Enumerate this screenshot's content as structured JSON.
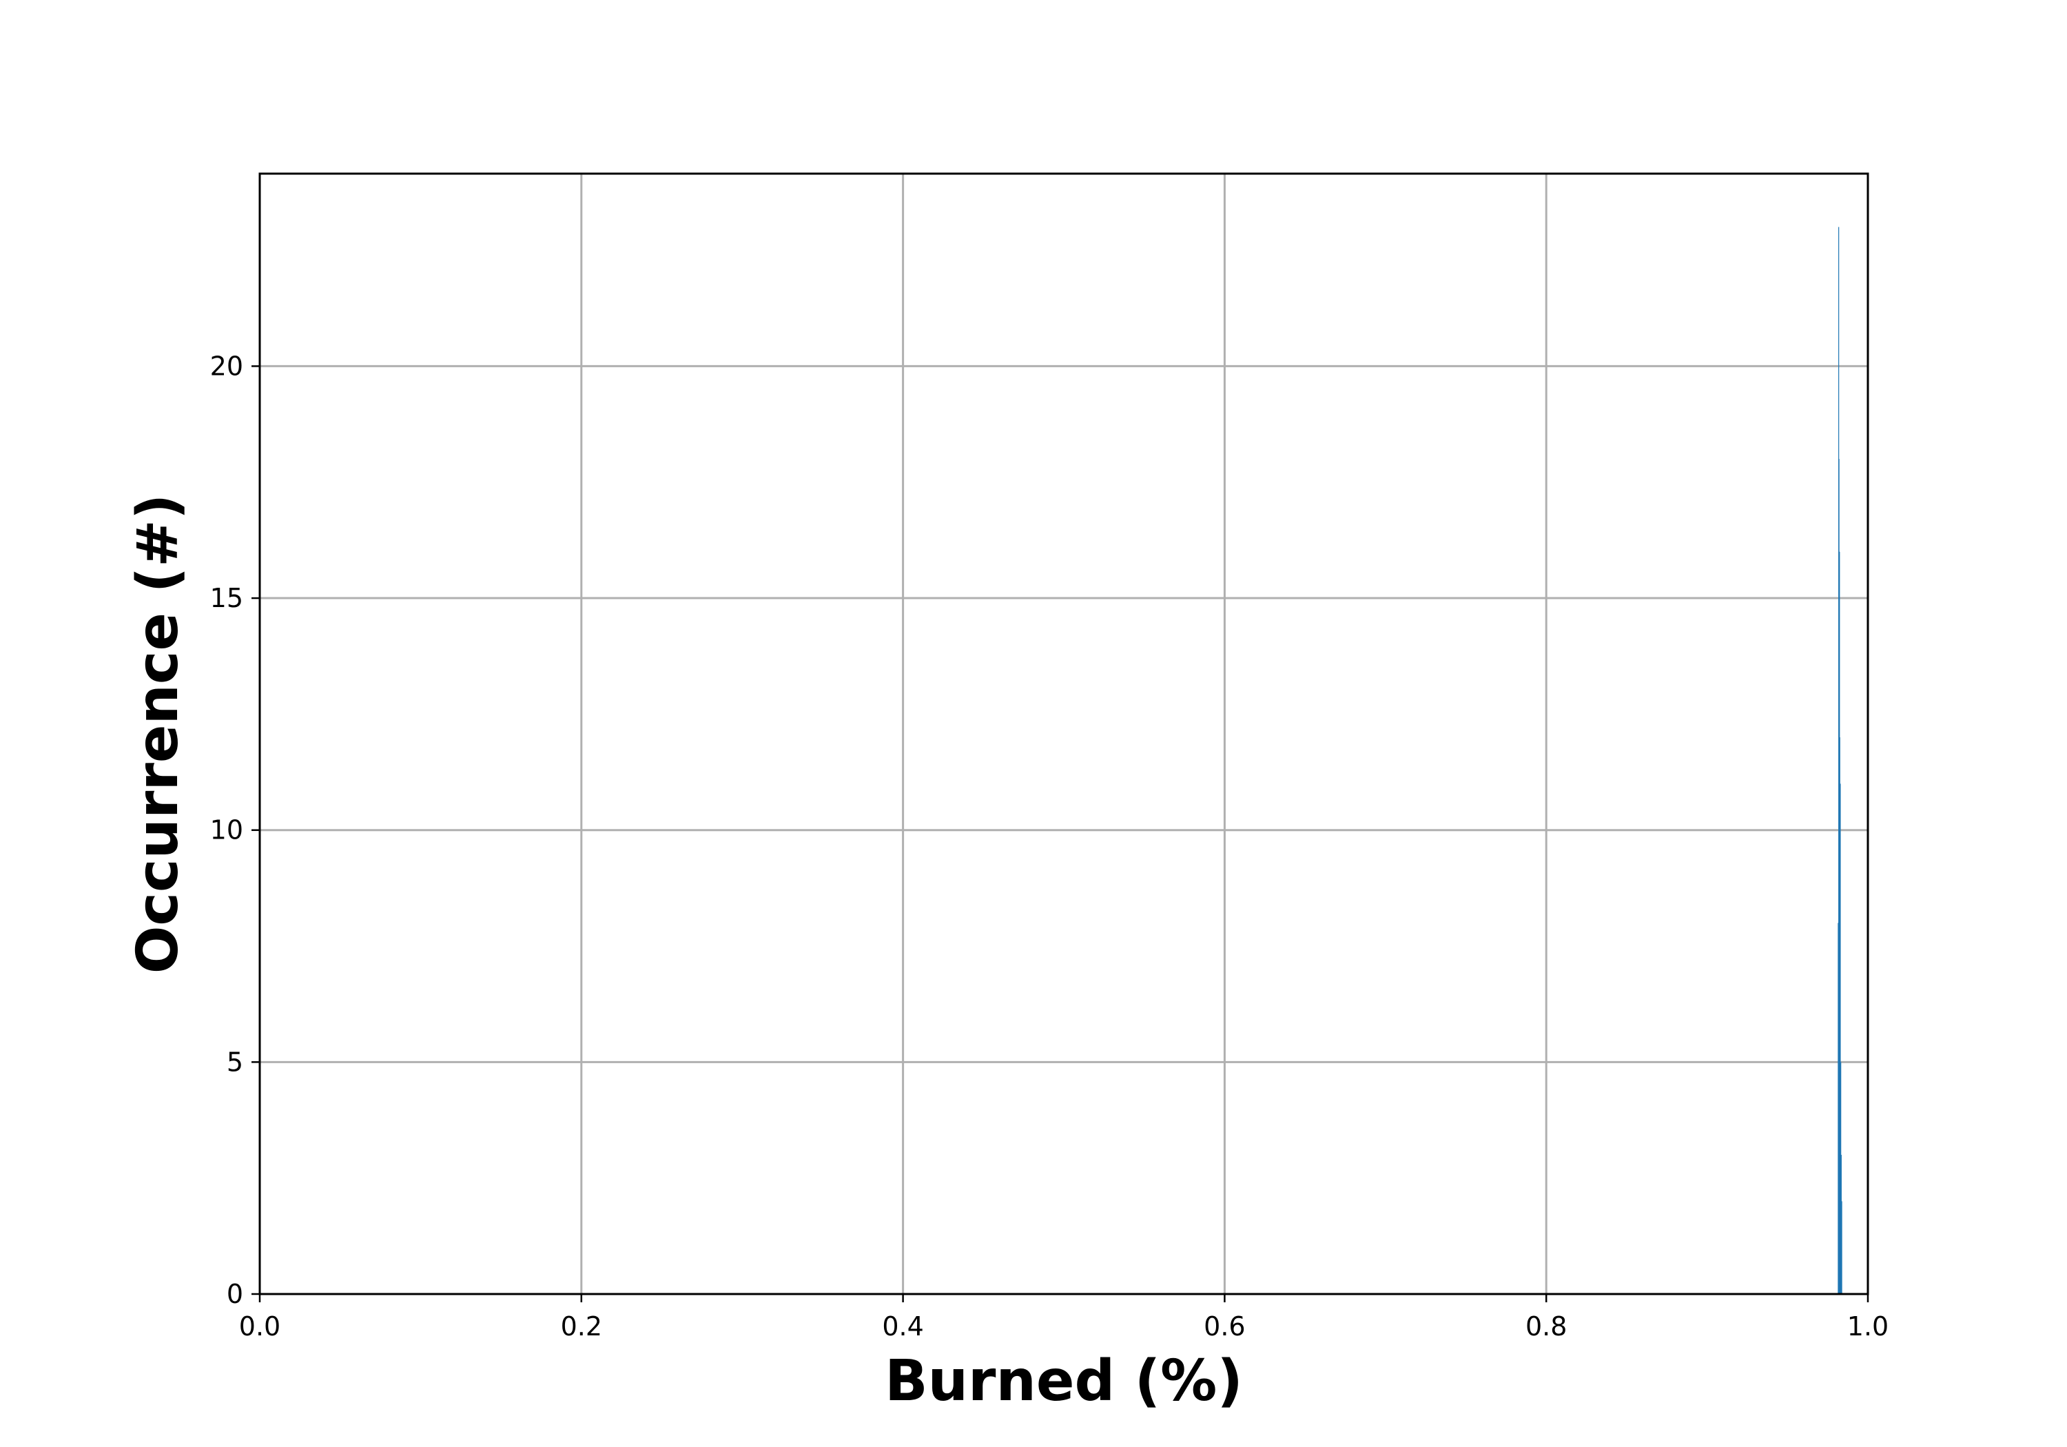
{
  "chart_data": {
    "type": "bar",
    "title": "",
    "xlabel": "Burned (%)",
    "ylabel": "Occurrence (#)",
    "xlim": [
      0.0,
      1.0
    ],
    "ylim": [
      0,
      24.15
    ],
    "x_ticks": [
      "0.0",
      "0.2",
      "0.4",
      "0.6",
      "0.8",
      "1.0"
    ],
    "y_ticks": [
      "0",
      "5",
      "10",
      "15",
      "20"
    ],
    "x_tick_values": [
      0.0,
      0.2,
      0.4,
      0.6,
      0.8,
      1.0
    ],
    "y_tick_values": [
      0,
      5,
      10,
      15,
      20
    ],
    "grid": true,
    "bar_color": "#1f77b4",
    "bin_width": 0.0005,
    "bins": [
      {
        "x": 0.9813,
        "count": 8
      },
      {
        "x": 0.9816,
        "count": 23
      },
      {
        "x": 0.9818,
        "count": 18
      },
      {
        "x": 0.9821,
        "count": 16
      },
      {
        "x": 0.9823,
        "count": 12
      },
      {
        "x": 0.9826,
        "count": 11
      },
      {
        "x": 0.9829,
        "count": 5
      },
      {
        "x": 0.9832,
        "count": 3
      },
      {
        "x": 0.9835,
        "count": 2
      }
    ]
  }
}
